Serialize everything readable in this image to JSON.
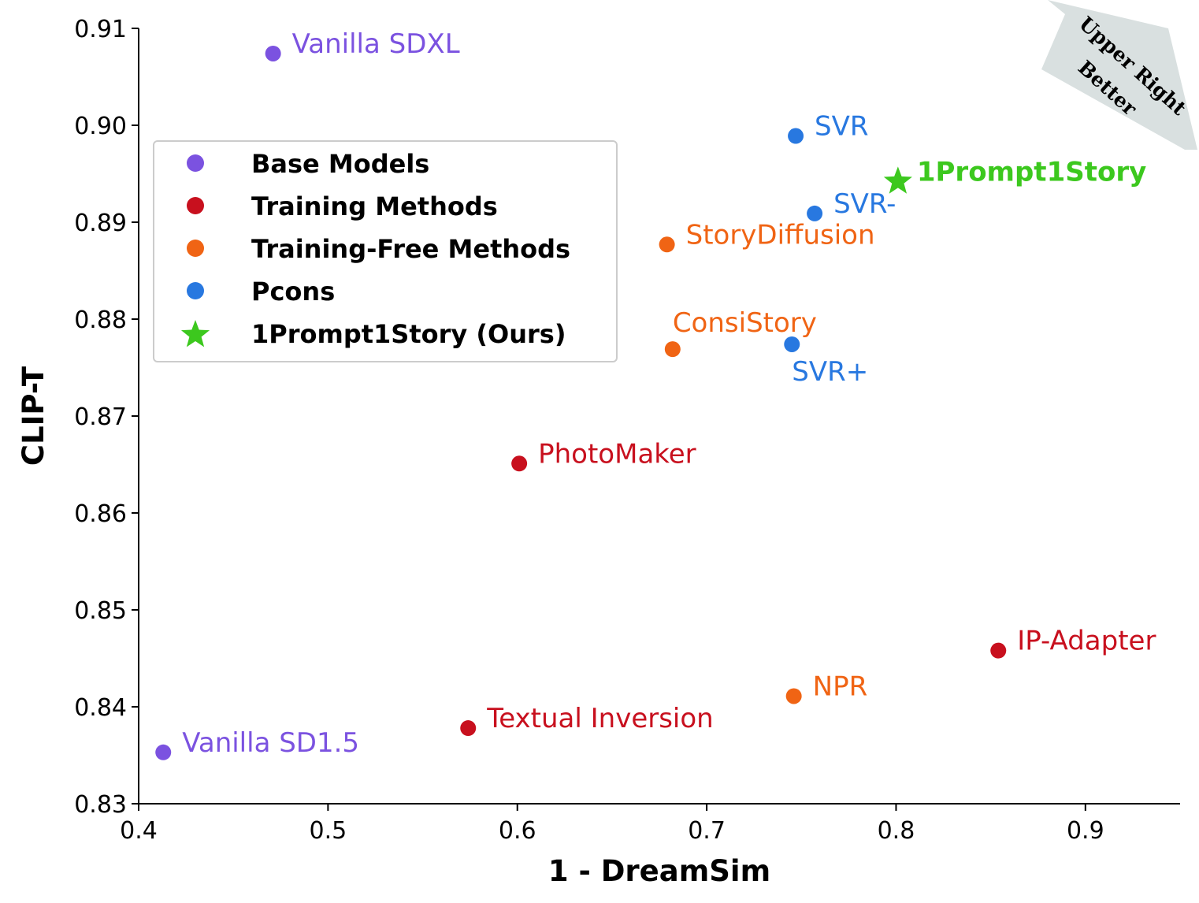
{
  "chart_data": {
    "type": "scatter",
    "xlabel": "1 - DreamSim",
    "ylabel": "CLIP-T",
    "xlim": [
      0.4,
      0.95
    ],
    "ylim": [
      0.83,
      0.91
    ],
    "xticks": [
      "0.4",
      "0.5",
      "0.6",
      "0.7",
      "0.8",
      "0.9"
    ],
    "yticks": [
      "0.83",
      "0.84",
      "0.85",
      "0.86",
      "0.87",
      "0.88",
      "0.89",
      "0.90",
      "0.91"
    ],
    "grid": false,
    "legend_position": "upper-left",
    "colors": {
      "base": "#7b52e0",
      "training": "#c8101e",
      "training_free": "#f06414",
      "pcons": "#2878e0",
      "ours": "#3cc81e"
    },
    "legend": [
      {
        "label": "Base Models",
        "group": "base",
        "marker": "circle"
      },
      {
        "label": "Training Methods",
        "group": "training",
        "marker": "circle"
      },
      {
        "label": "Training-Free Methods",
        "group": "training_free",
        "marker": "circle"
      },
      {
        "label": "Pcons",
        "group": "pcons",
        "marker": "circle"
      },
      {
        "label": "1Prompt1Story (Ours)",
        "group": "ours",
        "marker": "star"
      }
    ],
    "points": [
      {
        "label": "Vanilla SDXL",
        "x": 0.471,
        "y": 0.9074,
        "group": "base",
        "marker": "circle",
        "label_pos": "right",
        "bold": false
      },
      {
        "label": "Vanilla SD1.5",
        "x": 0.413,
        "y": 0.8353,
        "group": "base",
        "marker": "circle",
        "label_pos": "right",
        "bold": false
      },
      {
        "label": "PhotoMaker",
        "x": 0.601,
        "y": 0.8651,
        "group": "training",
        "marker": "circle",
        "label_pos": "right",
        "bold": false
      },
      {
        "label": "Textual Inversion",
        "x": 0.574,
        "y": 0.8378,
        "group": "training",
        "marker": "circle",
        "label_pos": "right",
        "bold": false
      },
      {
        "label": "IP-Adapter",
        "x": 0.854,
        "y": 0.8458,
        "group": "training",
        "marker": "circle",
        "label_pos": "right",
        "bold": false
      },
      {
        "label": "StoryDiffusion",
        "x": 0.679,
        "y": 0.8877,
        "group": "training_free",
        "marker": "circle",
        "label_pos": "right",
        "bold": false
      },
      {
        "label": "ConsiStory",
        "x": 0.682,
        "y": 0.8769,
        "group": "training_free",
        "marker": "circle",
        "label_pos": "above-right",
        "bold": false
      },
      {
        "label": "NPR",
        "x": 0.746,
        "y": 0.8411,
        "group": "training_free",
        "marker": "circle",
        "label_pos": "right",
        "bold": false
      },
      {
        "label": "SVR",
        "x": 0.747,
        "y": 0.8989,
        "group": "pcons",
        "marker": "circle",
        "label_pos": "right",
        "bold": false
      },
      {
        "label": "SVR-",
        "x": 0.757,
        "y": 0.8909,
        "group": "pcons",
        "marker": "circle",
        "label_pos": "right",
        "bold": false
      },
      {
        "label": "SVR+",
        "x": 0.745,
        "y": 0.8774,
        "group": "pcons",
        "marker": "circle",
        "label_pos": "below",
        "bold": false
      },
      {
        "label": "1Prompt1Story",
        "x": 0.801,
        "y": 0.8942,
        "group": "ours",
        "marker": "star",
        "label_pos": "right",
        "bold": true
      }
    ],
    "annotation": {
      "line1": "Upper Right",
      "line2": "Better",
      "arrow_color": "#d9e0e0",
      "direction": "upper-right"
    }
  }
}
